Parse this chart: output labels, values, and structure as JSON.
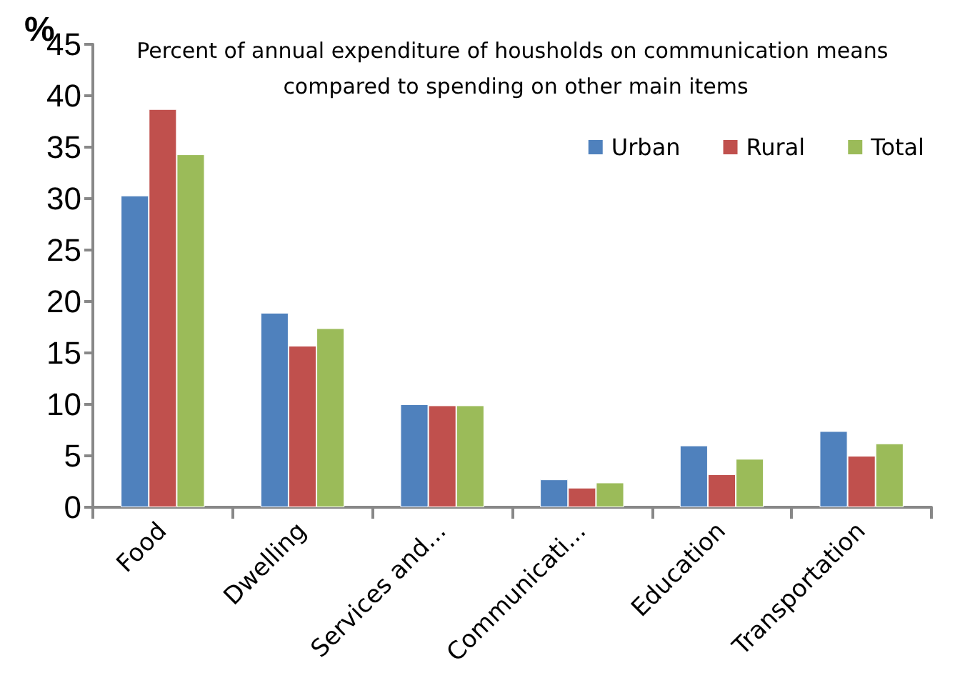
{
  "chart_data": {
    "type": "bar",
    "title": "Percent of annual expenditure of housholds on communication means compared to spending on other main items",
    "ylabel": "%",
    "categories": [
      "Food",
      "Dwelling",
      "Services and...",
      "Communicati...",
      "Education",
      "Transportation"
    ],
    "series": [
      {
        "name": "Urban",
        "color": "#4f81bd",
        "values": [
          30.3,
          18.9,
          10.0,
          2.7,
          6.0,
          7.4
        ]
      },
      {
        "name": "Rural",
        "color": "#c0504d",
        "values": [
          38.7,
          15.7,
          9.9,
          1.9,
          3.2,
          5.0
        ]
      },
      {
        "name": "Total",
        "color": "#9bbb59",
        "values": [
          34.3,
          17.4,
          9.9,
          2.4,
          4.7,
          6.2
        ]
      }
    ],
    "ylim": [
      0,
      45
    ],
    "yticks": [
      0,
      5,
      10,
      15,
      20,
      25,
      30,
      35,
      40,
      45
    ],
    "grid": false,
    "legend": "top right"
  }
}
